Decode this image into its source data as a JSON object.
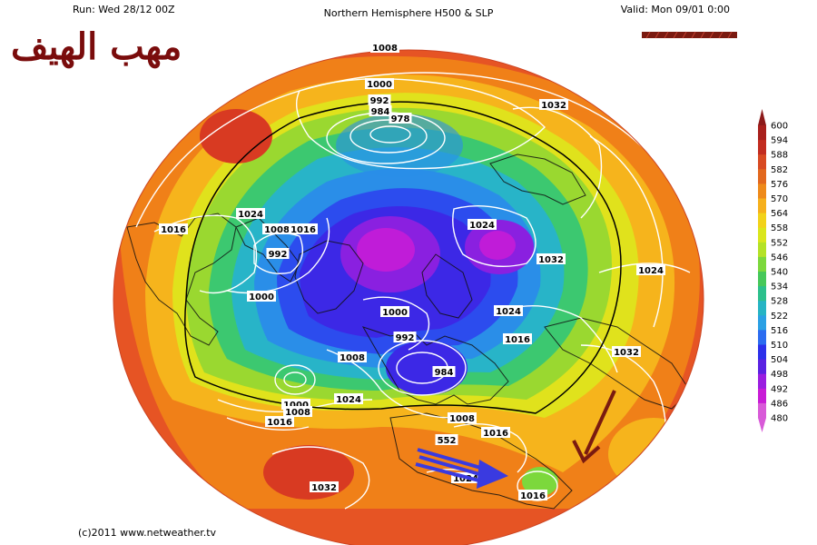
{
  "header": {
    "run": "Run: Wed 28/12 00Z",
    "title": "Northern Hemisphere H500 & SLP",
    "valid": "Valid: Mon 09/01 0:00"
  },
  "overlay": {
    "arabic_title": "مهب الهيف"
  },
  "footer": {
    "copyright": "(c)2011 www.netweather.tv"
  },
  "colorbar": {
    "levels": [
      "600",
      "594",
      "588",
      "582",
      "576",
      "570",
      "564",
      "558",
      "552",
      "546",
      "540",
      "534",
      "528",
      "522",
      "516",
      "510",
      "504",
      "498",
      "492",
      "486",
      "480"
    ],
    "colors": [
      "#8c1a1a",
      "#a8201c",
      "#c22c20",
      "#d84a22",
      "#e2681e",
      "#ee8a1a",
      "#f6b01c",
      "#f2d21a",
      "#dae61c",
      "#b4e226",
      "#7cd83c",
      "#46c85a",
      "#2cc08c",
      "#26b4c4",
      "#2aa0e4",
      "#2c6cf0",
      "#2c30ea",
      "#5a22e2",
      "#9a1ee0",
      "#c81cd6",
      "#d85ad8"
    ]
  },
  "isobars": [
    {
      "text": "1008"
    },
    {
      "text": "1000"
    },
    {
      "text": "992"
    },
    {
      "text": "984"
    },
    {
      "text": "978"
    },
    {
      "text": "1032"
    },
    {
      "text": "1016"
    },
    {
      "text": "1024"
    },
    {
      "text": "1008"
    },
    {
      "text": "1016"
    },
    {
      "text": "992"
    },
    {
      "text": "1000"
    },
    {
      "text": "1024"
    },
    {
      "text": "1032"
    },
    {
      "text": "1024"
    },
    {
      "text": "1000"
    },
    {
      "text": "1024"
    },
    {
      "text": "1016"
    },
    {
      "text": "992"
    },
    {
      "text": "1008"
    },
    {
      "text": "984"
    },
    {
      "text": "1032"
    },
    {
      "text": "1024"
    },
    {
      "text": "1000"
    },
    {
      "text": "1008"
    },
    {
      "text": "1016"
    },
    {
      "text": "1008"
    },
    {
      "text": "1016"
    },
    {
      "text": "552"
    },
    {
      "text": "1024"
    },
    {
      "text": "1032"
    },
    {
      "text": "1016"
    }
  ],
  "colors": {
    "arabic_text": "#7a0c0c",
    "arrow_blue": "#3a3ae0",
    "arrow_brown": "#7a1a10"
  }
}
